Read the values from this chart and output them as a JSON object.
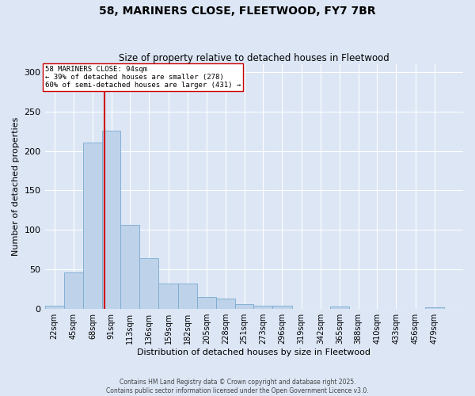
{
  "title": "58, MARINERS CLOSE, FLEETWOOD, FY7 7BR",
  "subtitle": "Size of property relative to detached houses in Fleetwood",
  "xlabel": "Distribution of detached houses by size in Fleetwood",
  "ylabel": "Number of detached properties",
  "footer_line1": "Contains HM Land Registry data © Crown copyright and database right 2025.",
  "footer_line2": "Contains public sector information licensed under the Open Government Licence v3.0.",
  "property_label": "58 MARINERS CLOSE: 94sqm",
  "annotation_line1": "← 39% of detached houses are smaller (278)",
  "annotation_line2": "60% of semi-detached houses are larger (431) →",
  "property_size": 94,
  "bar_color": "#bed3ea",
  "bar_edge_color": "#7aaad0",
  "vline_color": "#cc0000",
  "annotation_box_color": "#cc0000",
  "fig_bg_color": "#dce6f5",
  "ax_bg_color": "#dce6f5",
  "grid_color": "#ffffff",
  "categories": [
    "22sqm",
    "45sqm",
    "68sqm",
    "91sqm",
    "113sqm",
    "136sqm",
    "159sqm",
    "182sqm",
    "205sqm",
    "228sqm",
    "251sqm",
    "273sqm",
    "296sqm",
    "319sqm",
    "342sqm",
    "365sqm",
    "388sqm",
    "410sqm",
    "433sqm",
    "456sqm",
    "479sqm"
  ],
  "bin_edges": [
    22,
    45,
    68,
    91,
    113,
    136,
    159,
    182,
    205,
    228,
    251,
    273,
    296,
    319,
    342,
    365,
    388,
    410,
    433,
    456,
    479,
    502
  ],
  "values": [
    4,
    46,
    211,
    226,
    106,
    64,
    32,
    32,
    15,
    13,
    6,
    4,
    4,
    0,
    0,
    3,
    0,
    0,
    0,
    0,
    2
  ],
  "ylim": [
    0,
    310
  ],
  "yticks": [
    0,
    50,
    100,
    150,
    200,
    250,
    300
  ]
}
